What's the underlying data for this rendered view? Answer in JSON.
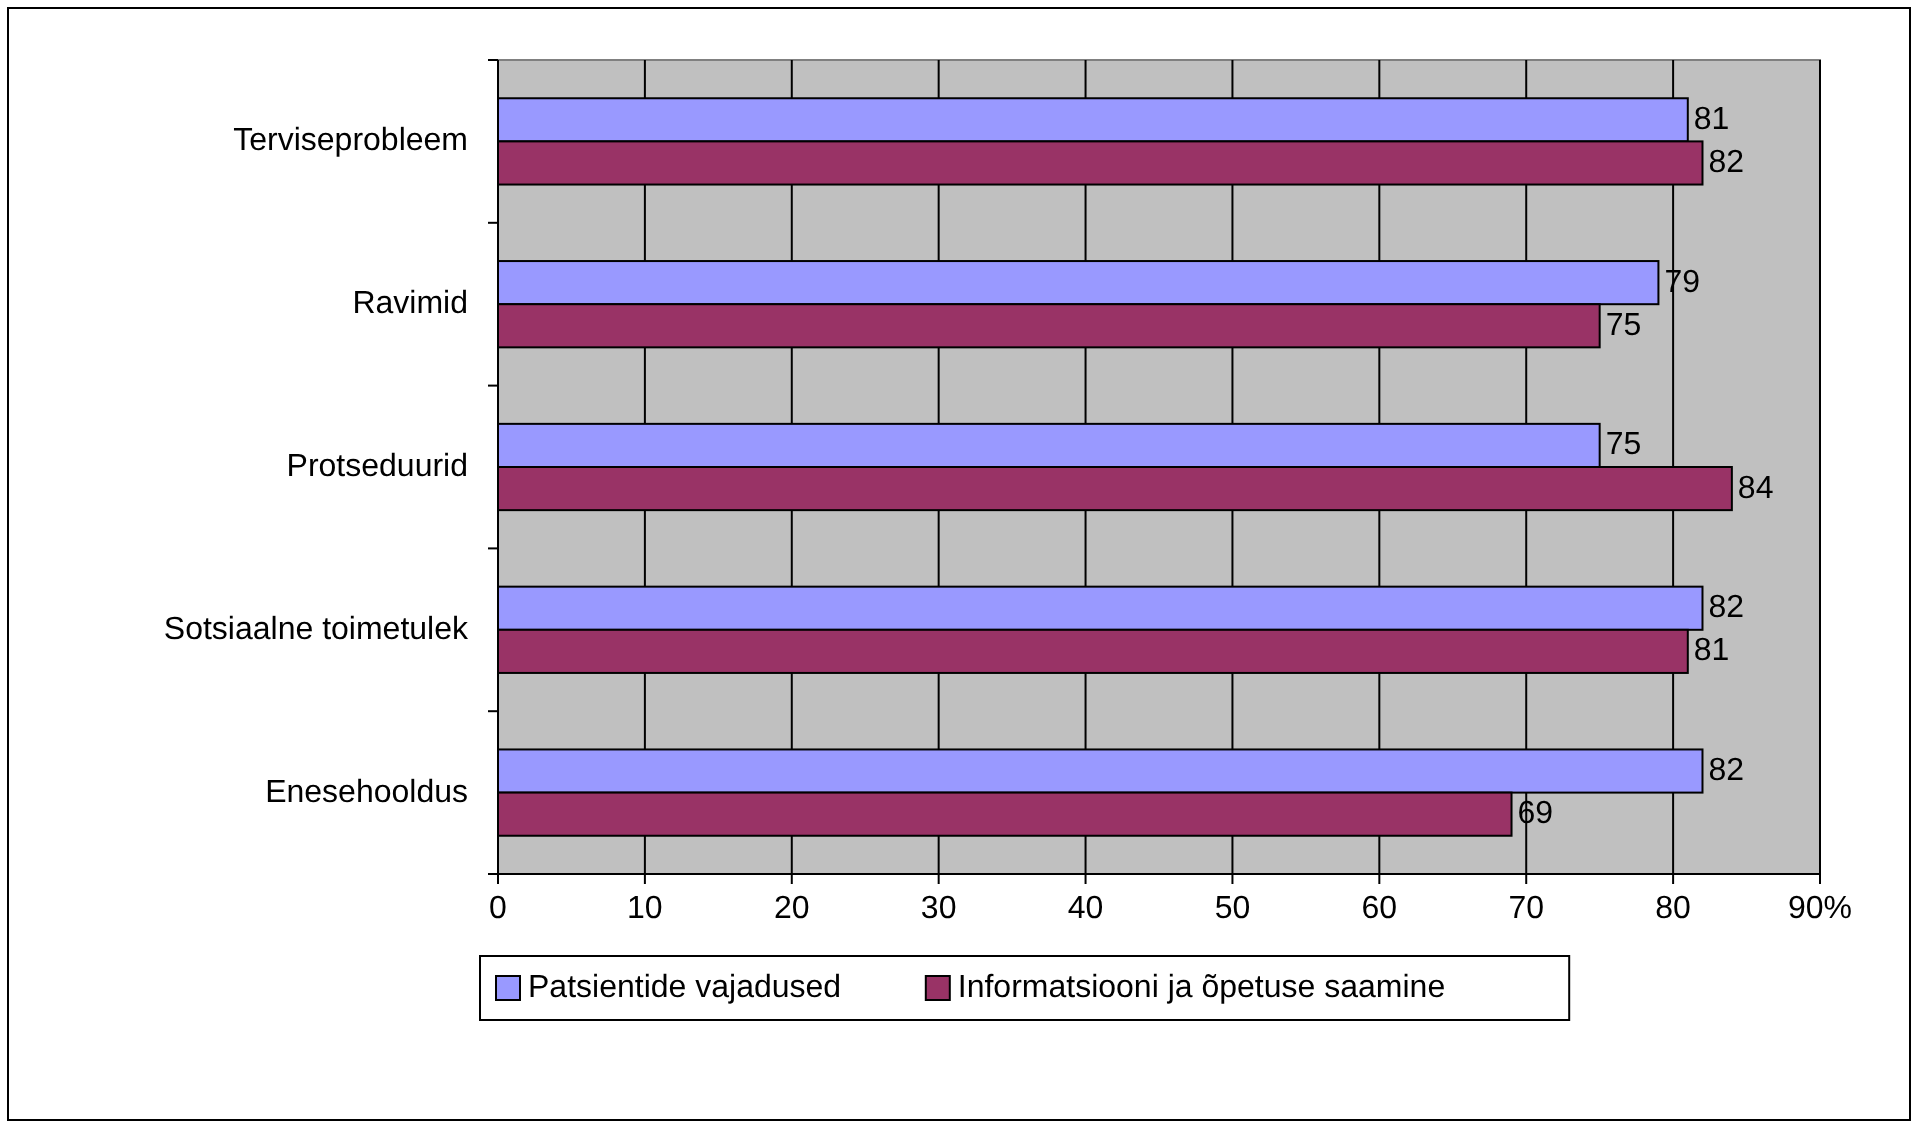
{
  "chart_data": {
    "type": "bar",
    "orientation": "horizontal",
    "categories": [
      "Terviseprobleem",
      "Ravimid",
      "Protseduurid",
      "Sotsiaalne toimetulek",
      "Enesehooldus"
    ],
    "series": [
      {
        "name": "Patsientide vajadused",
        "color": "#9999ff",
        "values": [
          81,
          79,
          75,
          82,
          82
        ]
      },
      {
        "name": "Informatsiooni ja õpetuse saamine",
        "color": "#993366",
        "values": [
          82,
          75,
          84,
          81,
          69
        ]
      }
    ],
    "xlim": [
      0,
      90
    ],
    "xticks": [
      0,
      10,
      20,
      30,
      40,
      50,
      60,
      70,
      80,
      {
        "value": 90,
        "label": "90%"
      }
    ],
    "grid": "x",
    "legend": "bottom",
    "data_labels": true
  }
}
